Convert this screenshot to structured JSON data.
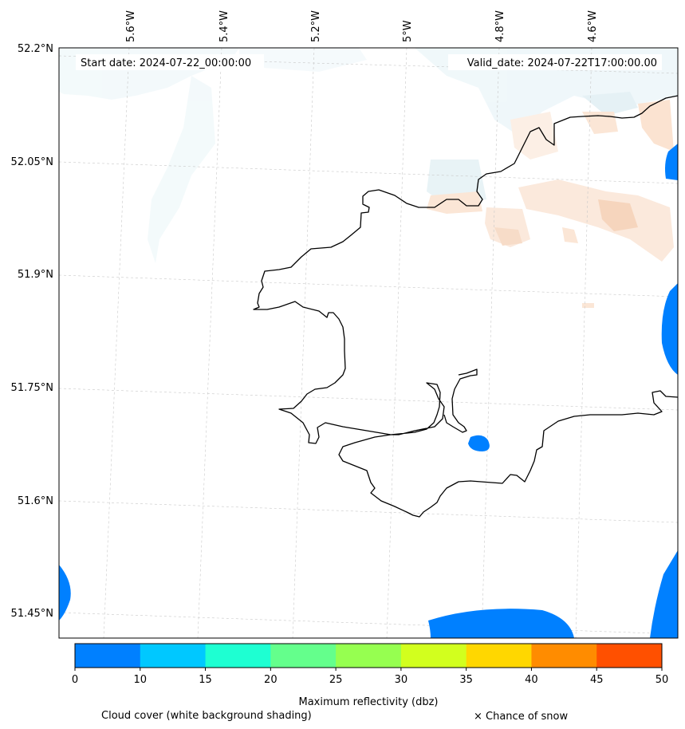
{
  "map": {
    "start_date": "Start date: 2024-07-22_00:00:00",
    "valid_date": "Valid_date: 2024-07-22T17:00:00.00",
    "lon_labels": [
      "5.6°W",
      "5.4°W",
      "5.2°W",
      "5°W",
      "4.8°W",
      "4.6°W"
    ],
    "lat_labels": [
      "52.2°N",
      "52.05°N",
      "51.9°N",
      "51.75°N",
      "51.6°N",
      "51.45°N"
    ],
    "colors": {
      "coastline": "#000000",
      "cloud_shading": "#e6f3f7",
      "warm_shading": "#f7d8c2"
    }
  },
  "colorbar": {
    "ticks": [
      "0",
      "10",
      "15",
      "20",
      "25",
      "30",
      "35",
      "40",
      "45",
      "50"
    ],
    "colors": [
      "#0080ff",
      "#00c8ff",
      "#1effd2",
      "#64ff8c",
      "#96ff50",
      "#d2ff1e",
      "#ffd700",
      "#ff8c00",
      "#ff5000"
    ],
    "label": "Maximum reflectivity (dbz)"
  },
  "legend": {
    "cloud_cover": "Cloud cover (white background shading)",
    "snow": "× Chance of snow"
  }
}
